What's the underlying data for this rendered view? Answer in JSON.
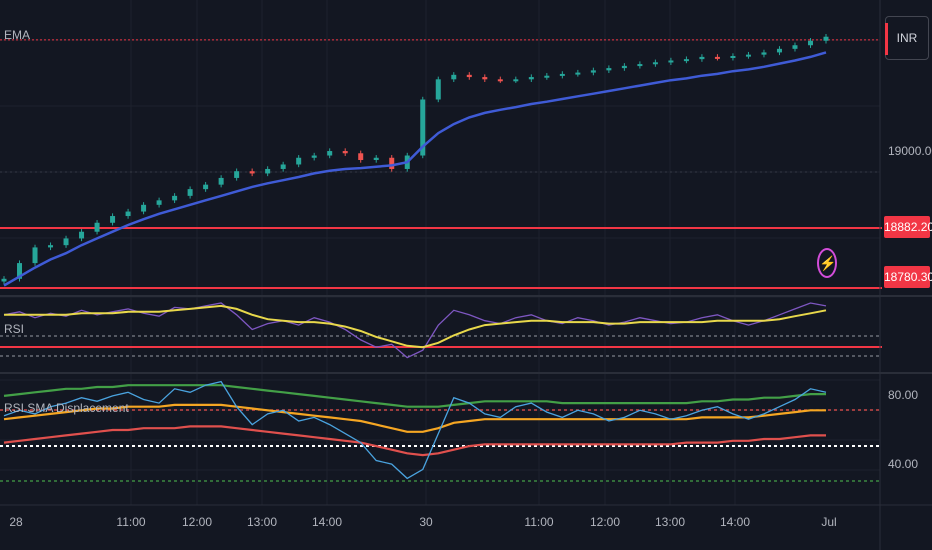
{
  "chart_data": [
    {
      "type": "line",
      "title": "EMA",
      "series": [
        {
          "name": "Price (candles)",
          "color_up": "#26a69a",
          "color_down": "#ef5350",
          "values": [
            18805,
            18840,
            18875,
            18880,
            18895,
            18910,
            18930,
            18945,
            18955,
            18970,
            18980,
            18990,
            19005,
            19015,
            19030,
            19045,
            19040,
            19050,
            19060,
            19075,
            19080,
            19090,
            19085,
            19070,
            19075,
            19050,
            19080,
            19205,
            19250,
            19260,
            19255,
            19250,
            19248,
            19250,
            19255,
            19258,
            19262,
            19265,
            19270,
            19275,
            19280,
            19284,
            19288,
            19292,
            19295,
            19300,
            19298,
            19302,
            19305,
            19310,
            19318,
            19326,
            19336,
            19345
          ]
        },
        {
          "name": "EMA",
          "color": "#3f5bd6",
          "values": [
            18790,
            18810,
            18830,
            18848,
            18862,
            18880,
            18895,
            18910,
            18925,
            18938,
            18950,
            18960,
            18970,
            18980,
            18990,
            19000,
            19010,
            19018,
            19025,
            19032,
            19040,
            19046,
            19050,
            19052,
            19055,
            19058,
            19065,
            19100,
            19130,
            19150,
            19165,
            19175,
            19182,
            19188,
            19195,
            19200,
            19206,
            19212,
            19218,
            19224,
            19230,
            19236,
            19242,
            19248,
            19252,
            19258,
            19262,
            19268,
            19272,
            19278,
            19285,
            19292,
            19300,
            19310
          ]
        }
      ],
      "y_ticks": [
        "19000.00"
      ],
      "price_tags": [
        "18882.20",
        "18780.30"
      ],
      "currency": "INR",
      "current_price_color": "#f23645"
    },
    {
      "type": "line",
      "title": "RSI",
      "series": [
        {
          "name": "RSI",
          "color": "#7e57c2",
          "values": [
            62,
            64,
            60,
            63,
            61,
            65,
            62,
            64,
            66,
            63,
            61,
            67,
            66,
            68,
            70,
            62,
            52,
            56,
            58,
            55,
            60,
            57,
            52,
            45,
            40,
            42,
            33,
            38,
            55,
            65,
            62,
            58,
            56,
            60,
            62,
            58,
            56,
            60,
            58,
            55,
            57,
            60,
            58,
            56,
            57,
            60,
            62,
            58,
            55,
            58,
            62,
            66,
            70,
            68
          ]
        },
        {
          "name": "RSI MA",
          "color": "#e8d84b",
          "values": [
            62,
            62,
            62,
            62,
            62,
            63,
            63,
            63,
            64,
            64,
            64,
            65,
            66,
            67,
            68,
            66,
            62,
            59,
            58,
            57,
            57,
            56,
            54,
            51,
            47,
            44,
            41,
            40,
            43,
            48,
            52,
            55,
            56,
            57,
            58,
            58,
            57,
            57,
            57,
            56,
            56,
            57,
            57,
            57,
            57,
            57,
            58,
            58,
            58,
            58,
            59,
            61,
            63,
            65
          ]
        }
      ],
      "levels": [
        70,
        30
      ]
    },
    {
      "type": "line",
      "title": "RSI SMA Displacement",
      "series": [
        {
          "name": "RSI",
          "color": "#4aa3df",
          "values": [
            65,
            68,
            66,
            70,
            72,
            75,
            73,
            76,
            78,
            74,
            72,
            80,
            78,
            82,
            84,
            70,
            60,
            66,
            68,
            62,
            64,
            60,
            55,
            50,
            40,
            38,
            30,
            35,
            55,
            75,
            72,
            66,
            64,
            70,
            72,
            67,
            64,
            68,
            66,
            62,
            64,
            68,
            66,
            63,
            65,
            68,
            70,
            66,
            63,
            66,
            70,
            74,
            80,
            78
          ]
        },
        {
          "name": "Upper band",
          "color": "#43a047",
          "values": [
            76,
            77,
            78,
            79,
            80,
            80,
            81,
            81,
            82,
            82,
            82,
            82,
            82,
            82,
            82,
            81,
            80,
            79,
            78,
            77,
            76,
            75,
            74,
            73,
            72,
            71,
            70,
            70,
            70,
            71,
            72,
            73,
            73,
            73,
            73,
            73,
            72,
            72,
            72,
            72,
            72,
            72,
            72,
            72,
            72,
            73,
            73,
            74,
            74,
            75,
            75,
            76,
            77,
            77
          ]
        },
        {
          "name": "SMA",
          "color": "#f5a623",
          "values": [
            63,
            64,
            65,
            66,
            67,
            68,
            69,
            69,
            70,
            70,
            70,
            71,
            71,
            71,
            71,
            70,
            69,
            68,
            67,
            66,
            65,
            64,
            63,
            62,
            60,
            58,
            56,
            56,
            58,
            61,
            62,
            63,
            63,
            63,
            63,
            63,
            63,
            63,
            63,
            63,
            63,
            63,
            63,
            63,
            63,
            64,
            64,
            64,
            64,
            65,
            66,
            67,
            68,
            68
          ]
        },
        {
          "name": "Lower band",
          "color": "#e0504d",
          "values": [
            50,
            51,
            52,
            53,
            54,
            55,
            56,
            57,
            57,
            58,
            58,
            58,
            59,
            59,
            59,
            58,
            57,
            56,
            55,
            54,
            53,
            52,
            51,
            50,
            48,
            46,
            44,
            43,
            44,
            46,
            48,
            49,
            49,
            49,
            49,
            49,
            49,
            49,
            49,
            49,
            49,
            49,
            49,
            49,
            50,
            50,
            50,
            51,
            51,
            52,
            52,
            53,
            54,
            54
          ]
        }
      ],
      "y_ticks": [
        "80.00",
        "40.00"
      ],
      "levels": [
        70,
        50,
        30
      ]
    }
  ],
  "time_axis": [
    "28",
    "11:00",
    "12:00",
    "13:00",
    "14:00",
    "30",
    "11:00",
    "12:00",
    "13:00",
    "14:00",
    "Jul"
  ]
}
